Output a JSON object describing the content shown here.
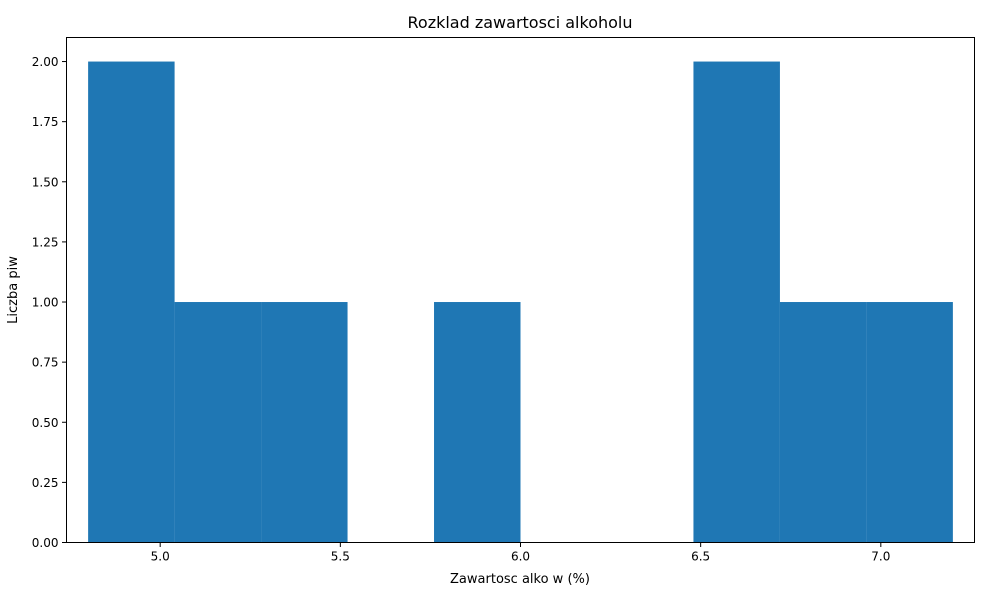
{
  "chart_data": {
    "type": "bar",
    "title": "Rozklad zawartosci alkoholu",
    "xlabel": "Zawartosc alko w (%)",
    "ylabel": "Liczba piw",
    "xlim": [
      4.74,
      7.26
    ],
    "ylim": [
      0,
      2.1
    ],
    "x_ticks": [
      {
        "value": 5.0,
        "label": "5.0"
      },
      {
        "value": 5.5,
        "label": "5.5"
      },
      {
        "value": 6.0,
        "label": "6.0"
      },
      {
        "value": 6.5,
        "label": "6.5"
      },
      {
        "value": 7.0,
        "label": "7.0"
      }
    ],
    "y_ticks": [
      {
        "value": 0.0,
        "label": "0.00"
      },
      {
        "value": 0.25,
        "label": "0.25"
      },
      {
        "value": 0.5,
        "label": "0.50"
      },
      {
        "value": 0.75,
        "label": "0.75"
      },
      {
        "value": 1.0,
        "label": "1.00"
      },
      {
        "value": 1.25,
        "label": "1.25"
      },
      {
        "value": 1.5,
        "label": "1.50"
      },
      {
        "value": 1.75,
        "label": "1.75"
      },
      {
        "value": 2.0,
        "label": "2.00"
      }
    ],
    "bins": [
      {
        "start": 4.8,
        "end": 5.04,
        "count": 2
      },
      {
        "start": 5.04,
        "end": 5.28,
        "count": 1
      },
      {
        "start": 5.28,
        "end": 5.52,
        "count": 1
      },
      {
        "start": 5.52,
        "end": 5.76,
        "count": 0
      },
      {
        "start": 5.76,
        "end": 6.0,
        "count": 1
      },
      {
        "start": 6.0,
        "end": 6.24,
        "count": 0
      },
      {
        "start": 6.24,
        "end": 6.48,
        "count": 0
      },
      {
        "start": 6.48,
        "end": 6.72,
        "count": 2
      },
      {
        "start": 6.72,
        "end": 6.96,
        "count": 1
      },
      {
        "start": 6.96,
        "end": 7.2,
        "count": 1
      }
    ],
    "bar_color": "#1f77b4",
    "grid": false,
    "legend": "none"
  }
}
